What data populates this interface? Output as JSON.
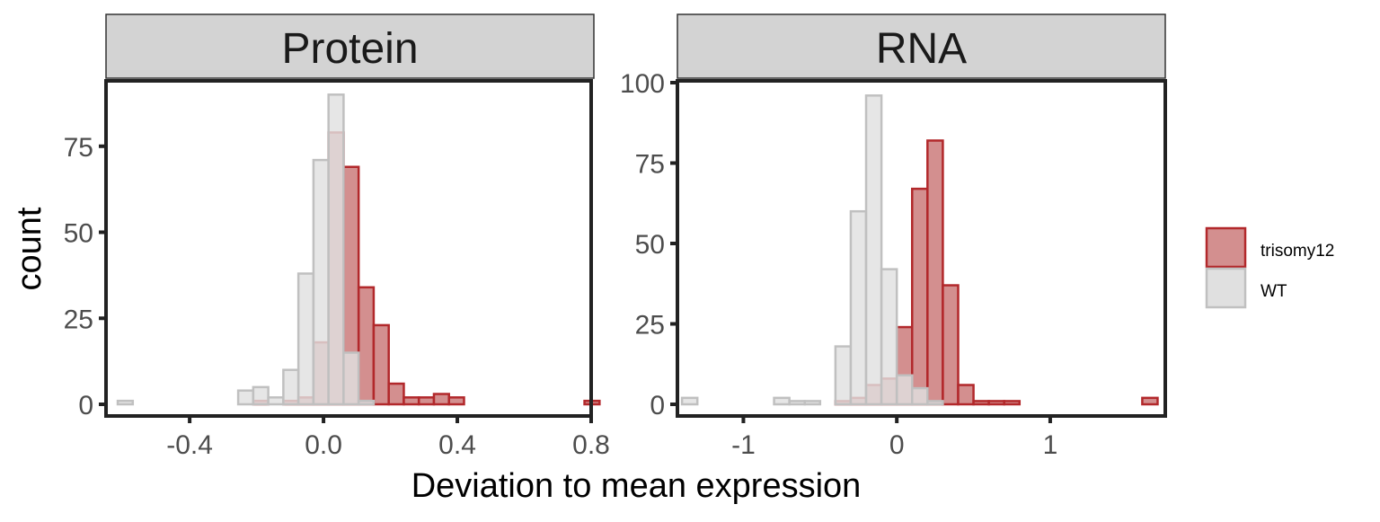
{
  "chart_data": {
    "type": "histogram",
    "x_label": "Deviation to mean expression",
    "y_label": "count",
    "legend": {
      "position": "right",
      "items": [
        {
          "label": "trisomy12",
          "fill": "#d38f8f",
          "stroke": "#b2282b"
        },
        {
          "label": "WT",
          "fill": "#e0e0e0",
          "stroke": "#c0c0c0"
        }
      ]
    },
    "panels": [
      {
        "title": "Protein",
        "xlim": [
          -0.65,
          0.8
        ],
        "x_ticks": [
          -0.4,
          0.0,
          0.4,
          0.8
        ],
        "x_tick_labels": [
          "-0.4",
          "0.0",
          "0.4",
          "0.8"
        ],
        "ylim": [
          0,
          94
        ],
        "y_ticks": [
          0,
          25,
          50,
          75
        ],
        "y_tick_labels": [
          "0",
          "25",
          "50",
          "75"
        ],
        "bin_start": -0.615,
        "bin_width": 0.045,
        "series": [
          {
            "name": "trisomy12",
            "values": [
              0,
              0,
              0,
              0,
              0,
              0,
              0,
              0,
              0,
              1,
              0,
              1,
              2,
              18,
              79,
              69,
              34,
              23,
              6,
              2,
              2,
              3,
              2,
              0,
              0,
              0,
              0,
              0,
              0,
              0,
              0,
              1
            ]
          },
          {
            "name": "WT",
            "values": [
              1,
              0,
              0,
              0,
              0,
              0,
              0,
              0,
              4,
              5,
              2,
              10,
              38,
              71,
              90,
              15,
              1,
              0,
              0,
              0,
              0,
              0,
              0,
              0,
              0,
              0,
              0,
              0,
              0,
              0,
              0,
              0
            ]
          }
        ]
      },
      {
        "title": "RNA",
        "xlim": [
          -1.43,
          1.75
        ],
        "x_ticks": [
          -1,
          0,
          1
        ],
        "x_tick_labels": [
          "-1",
          "0",
          "1"
        ],
        "ylim": [
          0,
          100
        ],
        "y_ticks": [
          0,
          25,
          50,
          75,
          100
        ],
        "y_tick_labels": [
          "0",
          "25",
          "50",
          "75",
          "100"
        ],
        "bin_start": -1.4,
        "bin_width": 0.1,
        "series": [
          {
            "name": "trisomy12",
            "values": [
              0,
              0,
              0,
              0,
              0,
              0,
              0,
              0,
              0,
              0,
              1,
              2,
              6,
              8,
              24,
              67,
              82,
              37,
              6,
              1,
              1,
              1,
              0,
              0,
              0,
              0,
              0,
              0,
              0,
              0,
              2
            ]
          },
          {
            "name": "WT",
            "values": [
              2,
              0,
              0,
              0,
              0,
              0,
              2,
              1,
              1,
              0,
              18,
              60,
              96,
              42,
              9,
              5,
              1,
              0,
              0,
              0,
              0,
              0,
              0,
              0,
              0,
              0,
              0,
              0,
              0,
              0,
              0
            ]
          }
        ]
      }
    ]
  }
}
